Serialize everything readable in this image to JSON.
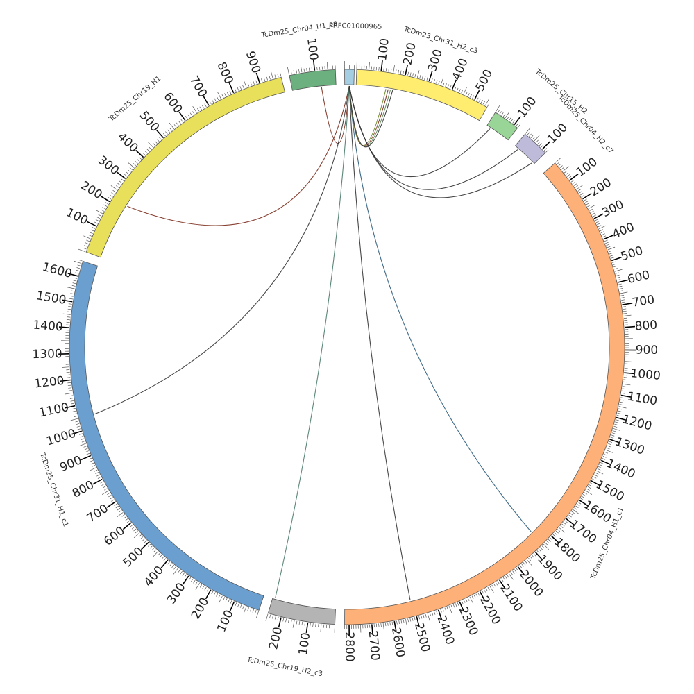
{
  "chart_data": {
    "type": "chord",
    "segments": [
      {
        "name": "PRFC01000965",
        "length": 20,
        "ticks": [],
        "color": "#a6cee3"
      },
      {
        "name": "TcDm25_Chr31_H2_c3",
        "length": 560,
        "ticks": [
          100,
          200,
          300,
          400,
          500
        ],
        "color": "#ffed6f"
      },
      {
        "name": "TcDm25_Chr15_H2",
        "length": 120,
        "ticks": [
          100
        ],
        "color": "#98d596"
      },
      {
        "name": "TcDm25_Chr04_H2_c7",
        "length": 120,
        "ticks": [
          100
        ],
        "color": "#bebada"
      },
      {
        "name": "TcDm25_Chr04_H1_c1",
        "length": 2820,
        "ticks": [
          100,
          200,
          300,
          400,
          500,
          600,
          700,
          800,
          900,
          1000,
          1100,
          1200,
          1300,
          1400,
          1500,
          1600,
          1700,
          1800,
          1900,
          2000,
          2100,
          2200,
          2300,
          2400,
          2500,
          2600,
          2700,
          2800
        ],
        "color": "#fdb078"
      },
      {
        "name": "TcDm25_Chr19_H2_c3",
        "length": 250,
        "ticks": [
          100,
          200
        ],
        "color": "#b4b4b4"
      },
      {
        "name": "TcDm25_Chr31_H1_c1",
        "length": 1660,
        "ticks": [
          100,
          200,
          300,
          400,
          500,
          600,
          700,
          800,
          900,
          1000,
          1100,
          1200,
          1300,
          1400,
          1500,
          1600
        ],
        "color": "#6a9fcf"
      },
      {
        "name": "TcDm25_Chr19_H1",
        "length": 980,
        "ticks": [
          100,
          200,
          300,
          400,
          500,
          600,
          700,
          800,
          900
        ],
        "color": "#e8e05a"
      },
      {
        "name": "TcDm25_Chr04_H1_c8",
        "length": 180,
        "ticks": [
          100
        ],
        "color": "#6bb07e"
      }
    ],
    "links": [
      {
        "from": "PRFC01000965",
        "from_pos": 10,
        "to": "TcDm25_Chr19_H1",
        "to_pos": 220,
        "color": "#7a2a1a"
      },
      {
        "from": "PRFC01000965",
        "from_pos": 10,
        "to": "TcDm25_Chr04_H1_c8",
        "to_pos": 120,
        "color": "#7a2a1a"
      },
      {
        "from": "PRFC01000965",
        "from_pos": 10,
        "to": "TcDm25_Chr31_H1_c1",
        "to_pos": 1050,
        "color": "#333333"
      },
      {
        "from": "PRFC01000965",
        "from_pos": 10,
        "to": "TcDm25_Chr19_H2_c3",
        "to_pos": 240,
        "color": "#4a7a6a"
      },
      {
        "from": "PRFC01000965",
        "from_pos": 10,
        "to": "TcDm25_Chr04_H1_c1",
        "to_pos": 2510,
        "color": "#333333"
      },
      {
        "from": "PRFC01000965",
        "from_pos": 10,
        "to": "TcDm25_Chr04_H1_c1",
        "to_pos": 1850,
        "color": "#2a5a7a"
      },
      {
        "from": "PRFC01000965",
        "from_pos": 10,
        "to": "TcDm25_Chr31_H2_c3",
        "to_pos": 130,
        "color": "#6a8a2a"
      },
      {
        "from": "PRFC01000965",
        "from_pos": 10,
        "to": "TcDm25_Chr31_H2_c3",
        "to_pos": 140,
        "color": "#7a2a1a"
      },
      {
        "from": "PRFC01000965",
        "from_pos": 10,
        "to": "TcDm25_Chr31_H2_c3",
        "to_pos": 150,
        "color": "#5a8a5a"
      },
      {
        "from": "PRFC01000965",
        "from_pos": 10,
        "to": "TcDm25_Chr31_H2_c3",
        "to_pos": 160,
        "color": "#333333"
      },
      {
        "from": "PRFC01000965",
        "from_pos": 10,
        "to": "TcDm25_Chr15_H2",
        "to_pos": 20,
        "color": "#333333"
      },
      {
        "from": "PRFC01000965",
        "from_pos": 10,
        "to": "TcDm25_Chr04_H2_c7",
        "to_pos": 20,
        "color": "#333333"
      },
      {
        "from": "PRFC01000965",
        "from_pos": 10,
        "to": "TcDm25_Chr04_H2_c7",
        "to_pos": 110,
        "color": "#333333"
      }
    ]
  }
}
